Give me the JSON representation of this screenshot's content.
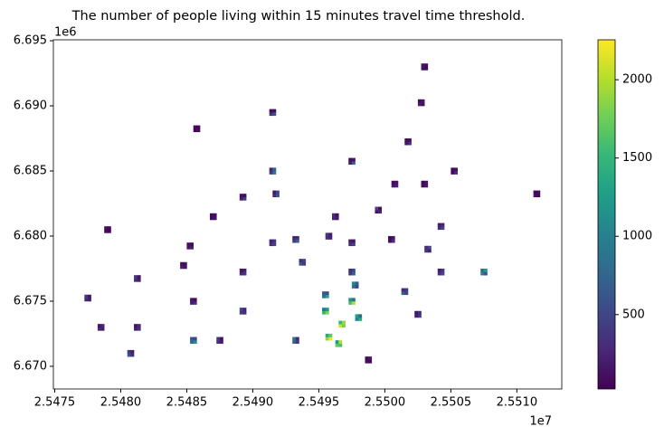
{
  "chart_data": {
    "type": "grid-map",
    "title": "The number of people living within 15 minutes travel time threshold.",
    "x_offset_label": "1e7",
    "y_offset_label": "1e6",
    "xlim": [
      25474900,
      25513400
    ],
    "ylim": [
      6668260,
      6695070
    ],
    "xticks": [
      {
        "value": 25475000,
        "label": "2.5475"
      },
      {
        "value": 25480000,
        "label": "2.5480"
      },
      {
        "value": 25485000,
        "label": "2.5485"
      },
      {
        "value": 25490000,
        "label": "2.5490"
      },
      {
        "value": 25495000,
        "label": "2.5495"
      },
      {
        "value": 25500000,
        "label": "2.5500"
      },
      {
        "value": 25505000,
        "label": "2.5505"
      },
      {
        "value": 25510000,
        "label": "2.5510"
      }
    ],
    "yticks": [
      {
        "value": 6670000,
        "label": "6.670"
      },
      {
        "value": 6675000,
        "label": "6.675"
      },
      {
        "value": 6680000,
        "label": "6.680"
      },
      {
        "value": 6685000,
        "label": "6.685"
      },
      {
        "value": 6690000,
        "label": "6.690"
      },
      {
        "value": 6695000,
        "label": "6.695"
      }
    ],
    "colormap": "viridis",
    "clim": [
      25,
      2255
    ],
    "cticks": [
      500,
      1000,
      1500,
      2000
    ],
    "x": [
      25502750,
      25503000,
      25502750,
      25503000,
      25502500,
      25502750,
      25502500,
      25502750,
      25491250,
      25491500,
      25491250,
      25491500,
      25485500,
      25485750,
      25485500,
      25485750,
      25501500,
      25501750,
      25501500,
      25501750,
      25497250,
      25497500,
      25497250,
      25497500,
      25491250,
      25491500,
      25491250,
      25491500,
      25491500,
      25491750,
      25491500,
      25491750,
      25500500,
      25500750,
      25500500,
      25500750,
      25502750,
      25503000,
      25502750,
      25503000,
      25505000,
      25505250,
      25505000,
      25505250,
      25511250,
      25511500,
      25511250,
      25511500,
      25489000,
      25489250,
      25489000,
      25489250,
      25486750,
      25487000,
      25486750,
      25487000,
      25496000,
      25496250,
      25496000,
      25496250,
      25499250,
      25499500,
      25499250,
      25499500,
      25504000,
      25504250,
      25504000,
      25504250,
      25478750,
      25479000,
      25478750,
      25479000,
      25485000,
      25485250,
      25485000,
      25485250,
      25491250,
      25491500,
      25491250,
      25491500,
      25493000,
      25493250,
      25493000,
      25493250,
      25495500,
      25495750,
      25495500,
      25495750,
      25497250,
      25497500,
      25497250,
      25497500,
      25500250,
      25500500,
      25500250,
      25500500,
      25503000,
      25503250,
      25503000,
      25503250,
      25481000,
      25481250,
      25481000,
      25481250,
      25484500,
      25484750,
      25484500,
      25484750,
      25489000,
      25489250,
      25489000,
      25489250,
      25493500,
      25493750,
      25493500,
      25493750,
      25497250,
      25497500,
      25497250,
      25497500,
      25504000,
      25504250,
      25504000,
      25504250,
      25507250,
      25507500,
      25507250,
      25507500,
      25477250,
      25477500,
      25477250,
      25477500,
      25485250,
      25485500,
      25485250,
      25485500,
      25489000,
      25489250,
      25489000,
      25489250,
      25495250,
      25495500,
      25495250,
      25495500,
      25497250,
      25497500,
      25497250,
      25497500,
      25501250,
      25501500,
      25501250,
      25501500,
      25502250,
      25502500,
      25502250,
      25502500,
      25478250,
      25478500,
      25478250,
      25478500,
      25481000,
      25481250,
      25481000,
      25481250,
      25485250,
      25485500,
      25485250,
      25485500,
      25487250,
      25487500,
      25487250,
      25487500,
      25493000,
      25493250,
      25493000,
      25493250,
      25495500,
      25495750,
      25495500,
      25495750,
      25480500,
      25480750,
      25480500,
      25480750,
      25498500,
      25498750,
      25498500,
      25498750,
      25496500,
      25496750,
      25496500,
      25496750,
      25495250,
      25495500,
      25495250,
      25495500,
      25497500,
      25497750,
      25497500,
      25497750,
      25496250,
      25496500,
      25496250,
      25496500,
      25497750,
      25498000,
      25497750,
      25498000
    ],
    "y": [
      6692750,
      6692750,
      6693000,
      6693000,
      6690000,
      6690000,
      6690250,
      6690250,
      6689250,
      6689250,
      6689500,
      6689500,
      6688000,
      6688000,
      6688250,
      6688250,
      6687000,
      6687000,
      6687250,
      6687250,
      6685500,
      6685500,
      6685750,
      6685750,
      6684750,
      6684750,
      6685000,
      6685000,
      6683000,
      6683000,
      6683250,
      6683250,
      6683750,
      6683750,
      6684000,
      6684000,
      6683750,
      6683750,
      6684000,
      6684000,
      6684750,
      6684750,
      6685000,
      6685000,
      6683000,
      6683000,
      6683250,
      6683250,
      6682750,
      6682750,
      6683000,
      6683000,
      6681250,
      6681250,
      6681500,
      6681500,
      6681250,
      6681250,
      6681500,
      6681500,
      6681750,
      6681750,
      6682000,
      6682000,
      6680500,
      6680500,
      6680750,
      6680750,
      6680250,
      6680250,
      6680500,
      6680500,
      6679000,
      6679000,
      6679250,
      6679250,
      6679250,
      6679250,
      6679500,
      6679500,
      6679500,
      6679500,
      6679750,
      6679750,
      6679750,
      6679750,
      6680000,
      6680000,
      6679250,
      6679250,
      6679500,
      6679500,
      6679500,
      6679500,
      6679750,
      6679750,
      6678750,
      6678750,
      6679000,
      6679000,
      6676500,
      6676500,
      6676750,
      6676750,
      6677500,
      6677500,
      6677750,
      6677750,
      6677000,
      6677000,
      6677250,
      6677250,
      6677750,
      6677750,
      6678000,
      6678000,
      6677000,
      6677000,
      6677250,
      6677250,
      6677000,
      6677000,
      6677250,
      6677250,
      6677000,
      6677000,
      6677250,
      6677250,
      6675000,
      6675000,
      6675250,
      6675250,
      6674750,
      6674750,
      6675000,
      6675000,
      6674000,
      6674000,
      6674250,
      6674250,
      6674000,
      6674000,
      6674250,
      6674250,
      6674750,
      6674750,
      6675000,
      6675000,
      6675500,
      6675500,
      6675750,
      6675750,
      6673750,
      6673750,
      6674000,
      6674000,
      6672750,
      6672750,
      6673000,
      6673000,
      6672750,
      6672750,
      6673000,
      6673000,
      6671750,
      6671750,
      6672000,
      6672000,
      6671750,
      6671750,
      6672000,
      6672000,
      6671750,
      6671750,
      6672000,
      6672000,
      6672000,
      6672000,
      6672250,
      6672250,
      6670750,
      6670750,
      6671000,
      6671000,
      6670250,
      6670250,
      6670500,
      6670500,
      6673000,
      6673000,
      6673250,
      6673250,
      6675250,
      6675250,
      6675500,
      6675500,
      6676000,
      6676000,
      6676250,
      6676250,
      6671500,
      6671500,
      6671750,
      6671750,
      6673500,
      6673500,
      6673750,
      6673750
    ],
    "values": [
      120,
      80,
      150,
      90,
      200,
      110,
      90,
      160,
      350,
      600,
      80,
      120,
      60,
      90,
      70,
      50,
      150,
      300,
      90,
      120,
      200,
      700,
      100,
      150,
      400,
      900,
      250,
      700,
      300,
      600,
      150,
      500,
      150,
      200,
      90,
      130,
      100,
      180,
      60,
      140,
      80,
      300,
      60,
      120,
      150,
      90,
      70,
      110,
      200,
      450,
      120,
      90,
      100,
      150,
      80,
      120,
      250,
      180,
      300,
      120,
      150,
      250,
      500,
      100,
      300,
      500,
      200,
      250,
      90,
      60,
      120,
      70,
      150,
      200,
      120,
      90,
      300,
      500,
      200,
      350,
      400,
      700,
      250,
      300,
      350,
      250,
      400,
      200,
      300,
      450,
      200,
      150,
      100,
      300,
      80,
      150,
      400,
      200,
      300,
      500,
      300,
      200,
      400,
      150,
      200,
      150,
      100,
      120,
      250,
      400,
      150,
      200,
      600,
      400,
      300,
      500,
      400,
      700,
      300,
      500,
      300,
      500,
      200,
      400,
      1000,
      600,
      800,
      1200,
      300,
      200,
      400,
      150,
      200,
      300,
      150,
      100,
      400,
      300,
      500,
      250,
      1500,
      1800,
      900,
      1200,
      1600,
      2000,
      1200,
      900,
      700,
      500,
      300,
      400,
      200,
      400,
      150,
      300,
      300,
      200,
      150,
      250,
      200,
      350,
      150,
      300,
      800,
      1100,
      600,
      500,
      300,
      200,
      400,
      150,
      700,
      400,
      900,
      300,
      1900,
      2200,
      1400,
      1700,
      600,
      300,
      400,
      200,
      100,
      60,
      80,
      150,
      2100,
      1800,
      1500,
      1900,
      800,
      1300,
      700,
      600,
      900,
      500,
      1100,
      700,
      1700,
      1600,
      1200,
      2000,
      1000,
      1400,
      1300,
      800
    ]
  }
}
